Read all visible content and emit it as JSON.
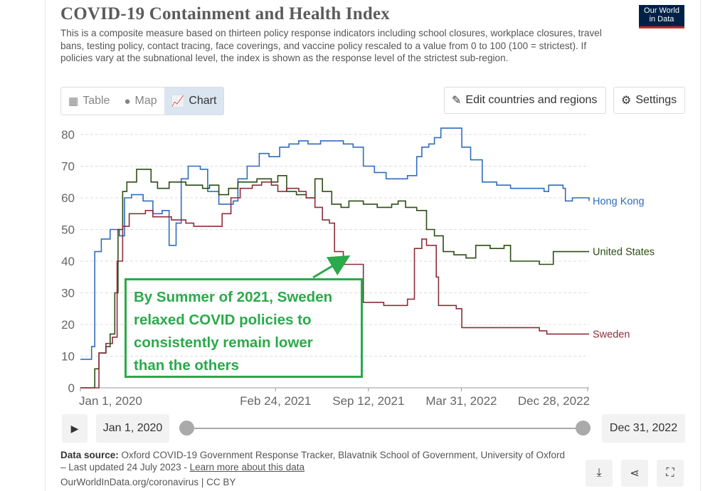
{
  "header": {
    "title": "COVID-19 Containment and Health Index",
    "subtitle": "This is a composite measure based on thirteen policy response indicators including school closures, workplace closures, travel bans, testing policy, contact tracing, face coverings, and vaccine policy rescaled to a value from 0 to 100 (100 = strictest). If policies vary at the subnational level, the index is shown as the response level of the strictest sub-region.",
    "logo_line1": "Our World",
    "logo_line2": "in Data"
  },
  "tabs": [
    {
      "label": "Table",
      "icon": "table-icon",
      "active": false
    },
    {
      "label": "Map",
      "icon": "globe-icon",
      "active": false
    },
    {
      "label": "Chart",
      "icon": "line-chart-icon",
      "active": true
    }
  ],
  "controls": {
    "edit_label": "Edit countries and regions",
    "settings_label": "Settings"
  },
  "annotation": {
    "text_lines": [
      "By Summer of 2021, Sweden",
      "relaxed COVID policies to",
      "consistently remain lower",
      "than the others"
    ],
    "color": "#2aaa4a"
  },
  "timeline": {
    "start_label": "Jan 1, 2020",
    "end_label": "Dec 31, 2022"
  },
  "footer": {
    "source_label": "Data source:",
    "source_text": "Oxford COVID-19 Government Response Tracker, Blavatnik School of Government, University of Oxford – Last updated 24 July 2023 -",
    "learn_more": "Learn more about this data",
    "credit": "OurWorldInData.org/coronavirus | CC BY"
  },
  "chart_data": {
    "type": "line",
    "title": "COVID-19 Containment and Health Index",
    "ylim": [
      0,
      82
    ],
    "yticks": [
      0,
      10,
      20,
      30,
      40,
      50,
      60,
      70,
      80
    ],
    "xlim": [
      "2020-01-01",
      "2022-12-31"
    ],
    "xticks": [
      "Jan 1, 2020",
      "Feb 24, 2021",
      "Sep 12, 2021",
      "Mar 31, 2022",
      "Dec 28, 2022"
    ],
    "grid": "horizontal dashed",
    "series": [
      {
        "name": "Hong Kong",
        "color": "#2f6dbd",
        "points": [
          [
            "2020-01-01",
            9
          ],
          [
            "2020-01-25",
            13
          ],
          [
            "2020-02-01",
            43
          ],
          [
            "2020-02-15",
            47
          ],
          [
            "2020-03-05",
            50
          ],
          [
            "2020-03-25",
            48
          ],
          [
            "2020-04-05",
            60
          ],
          [
            "2020-04-20",
            61
          ],
          [
            "2020-05-15",
            59
          ],
          [
            "2020-06-05",
            55
          ],
          [
            "2020-06-25",
            56
          ],
          [
            "2020-07-10",
            45
          ],
          [
            "2020-07-25",
            52
          ],
          [
            "2020-08-05",
            66
          ],
          [
            "2020-08-20",
            70
          ],
          [
            "2020-09-15",
            69
          ],
          [
            "2020-10-01",
            62
          ],
          [
            "2020-10-25",
            58
          ],
          [
            "2020-11-25",
            59
          ],
          [
            "2020-12-05",
            66
          ],
          [
            "2020-12-25",
            70
          ],
          [
            "2021-01-20",
            74
          ],
          [
            "2021-02-10",
            73
          ],
          [
            "2021-03-05",
            76
          ],
          [
            "2021-03-25",
            77
          ],
          [
            "2021-04-15",
            78
          ],
          [
            "2021-05-05",
            77
          ],
          [
            "2021-06-01",
            78
          ],
          [
            "2021-07-20",
            77
          ],
          [
            "2021-08-10",
            76
          ],
          [
            "2021-09-01",
            70
          ],
          [
            "2021-09-25",
            68
          ],
          [
            "2021-10-20",
            66
          ],
          [
            "2021-11-15",
            66
          ],
          [
            "2021-12-05",
            67
          ],
          [
            "2021-12-25",
            73
          ],
          [
            "2022-01-05",
            76
          ],
          [
            "2022-01-20",
            77
          ],
          [
            "2022-02-01",
            79
          ],
          [
            "2022-02-15",
            82
          ],
          [
            "2022-03-25",
            82
          ],
          [
            "2022-04-01",
            76
          ],
          [
            "2022-04-20",
            72
          ],
          [
            "2022-05-15",
            65
          ],
          [
            "2022-06-15",
            64
          ],
          [
            "2022-07-15",
            63
          ],
          [
            "2022-08-01",
            63
          ],
          [
            "2022-09-25",
            62
          ],
          [
            "2022-10-05",
            64
          ],
          [
            "2022-11-05",
            63
          ],
          [
            "2022-11-10",
            59
          ],
          [
            "2022-11-25",
            60
          ],
          [
            "2022-12-31",
            59
          ]
        ]
      },
      {
        "name": "United States",
        "color": "#2c4d13",
        "points": [
          [
            "2020-01-01",
            0
          ],
          [
            "2020-01-30",
            0
          ],
          [
            "2020-02-01",
            6
          ],
          [
            "2020-02-10",
            11
          ],
          [
            "2020-02-25",
            13
          ],
          [
            "2020-03-05",
            17
          ],
          [
            "2020-03-15",
            30
          ],
          [
            "2020-03-22",
            50
          ],
          [
            "2020-04-01",
            62
          ],
          [
            "2020-04-10",
            65
          ],
          [
            "2020-05-01",
            69
          ],
          [
            "2020-06-01",
            65
          ],
          [
            "2020-06-15",
            63
          ],
          [
            "2020-07-10",
            65
          ],
          [
            "2020-08-15",
            64
          ],
          [
            "2020-09-20",
            63
          ],
          [
            "2020-10-05",
            64
          ],
          [
            "2020-10-25",
            61
          ],
          [
            "2020-11-15",
            63
          ],
          [
            "2020-12-05",
            65
          ],
          [
            "2021-01-15",
            66
          ],
          [
            "2021-02-15",
            65
          ],
          [
            "2021-03-01",
            67
          ],
          [
            "2021-03-20",
            62
          ],
          [
            "2021-04-10",
            61
          ],
          [
            "2021-05-01",
            60
          ],
          [
            "2021-05-20",
            66
          ],
          [
            "2021-06-05",
            62
          ],
          [
            "2021-06-25",
            58
          ],
          [
            "2021-07-15",
            57
          ],
          [
            "2021-08-01",
            59
          ],
          [
            "2021-09-01",
            58
          ],
          [
            "2021-10-01",
            57
          ],
          [
            "2021-11-01",
            58
          ],
          [
            "2021-11-15",
            59
          ],
          [
            "2021-12-01",
            57
          ],
          [
            "2021-12-25",
            56
          ],
          [
            "2022-01-15",
            50
          ],
          [
            "2022-02-01",
            48
          ],
          [
            "2022-02-20",
            43
          ],
          [
            "2022-03-15",
            42
          ],
          [
            "2022-04-10",
            41
          ],
          [
            "2022-05-01",
            45
          ],
          [
            "2022-06-01",
            44
          ],
          [
            "2022-07-01",
            45
          ],
          [
            "2022-07-15",
            40
          ],
          [
            "2022-09-15",
            39
          ],
          [
            "2022-10-15",
            43
          ],
          [
            "2022-12-31",
            43
          ]
        ]
      },
      {
        "name": "Sweden",
        "color": "#8c2e3a",
        "points": [
          [
            "2020-01-01",
            0
          ],
          [
            "2020-02-01",
            0
          ],
          [
            "2020-02-10",
            11
          ],
          [
            "2020-02-25",
            14
          ],
          [
            "2020-03-10",
            16
          ],
          [
            "2020-03-20",
            40
          ],
          [
            "2020-04-01",
            51
          ],
          [
            "2020-04-15",
            55
          ],
          [
            "2020-05-20",
            56
          ],
          [
            "2020-06-05",
            54
          ],
          [
            "2020-07-15",
            53
          ],
          [
            "2020-08-15",
            52
          ],
          [
            "2020-09-01",
            51
          ],
          [
            "2020-10-01",
            51
          ],
          [
            "2020-11-01",
            55
          ],
          [
            "2020-11-20",
            60
          ],
          [
            "2020-12-10",
            63
          ],
          [
            "2021-01-05",
            64
          ],
          [
            "2021-01-25",
            65
          ],
          [
            "2021-02-15",
            64
          ],
          [
            "2021-03-01",
            62
          ],
          [
            "2021-03-20",
            63
          ],
          [
            "2021-04-15",
            62
          ],
          [
            "2021-05-01",
            60
          ],
          [
            "2021-05-20",
            57
          ],
          [
            "2021-06-05",
            53
          ],
          [
            "2021-06-20",
            52
          ],
          [
            "2021-07-01",
            43
          ],
          [
            "2021-07-20",
            39
          ],
          [
            "2021-08-15",
            39
          ],
          [
            "2021-09-01",
            27
          ],
          [
            "2021-10-15",
            26
          ],
          [
            "2021-12-05",
            28
          ],
          [
            "2021-12-20",
            44
          ],
          [
            "2022-01-05",
            47
          ],
          [
            "2022-01-15",
            45
          ],
          [
            "2022-02-05",
            35
          ],
          [
            "2022-02-10",
            26
          ],
          [
            "2022-03-20",
            25
          ],
          [
            "2022-04-01",
            19
          ],
          [
            "2022-06-01",
            19
          ],
          [
            "2022-09-15",
            18
          ],
          [
            "2022-10-01",
            17
          ],
          [
            "2022-12-31",
            17
          ]
        ]
      }
    ]
  }
}
